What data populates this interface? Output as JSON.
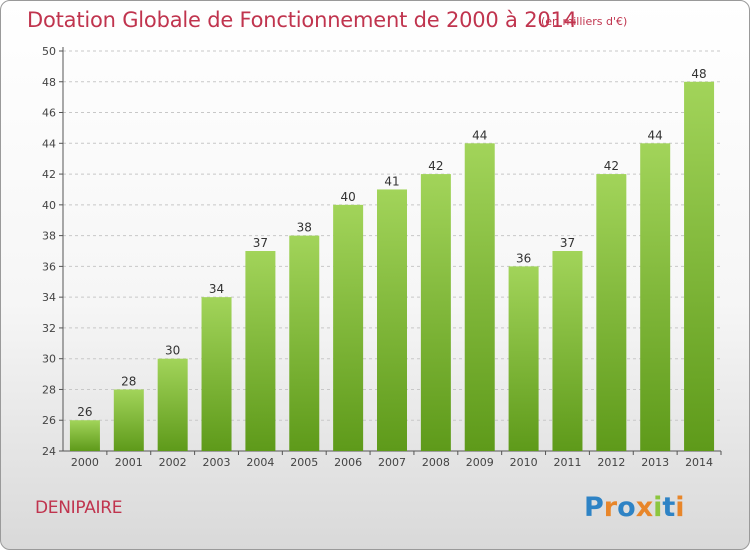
{
  "header": {
    "title": "Dotation Globale de Fonctionnement de 2000 à 2014",
    "unit": "(en milliers d'€)"
  },
  "footer": {
    "commune": "DENIPAIRE",
    "brand": "Proxiti"
  },
  "colors": {
    "accent": "#c0344e",
    "bar_light": "#a2d45a",
    "bar_dark": "#5e9a1a",
    "grid": "#c8c8c8"
  },
  "chart_data": {
    "type": "bar",
    "categories": [
      "2000",
      "2001",
      "2002",
      "2003",
      "2004",
      "2005",
      "2006",
      "2007",
      "2008",
      "2009",
      "2010",
      "2011",
      "2012",
      "2013",
      "2014"
    ],
    "values": [
      26,
      28,
      30,
      34,
      37,
      38,
      40,
      41,
      42,
      44,
      36,
      37,
      42,
      44,
      48
    ],
    "title": "Dotation Globale de Fonctionnement de 2000 à 2014",
    "ylim": [
      24,
      50
    ],
    "yticks": [
      24,
      26,
      28,
      30,
      32,
      34,
      36,
      38,
      40,
      42,
      44,
      46,
      48,
      50
    ],
    "grid": true,
    "data_labels": true
  }
}
